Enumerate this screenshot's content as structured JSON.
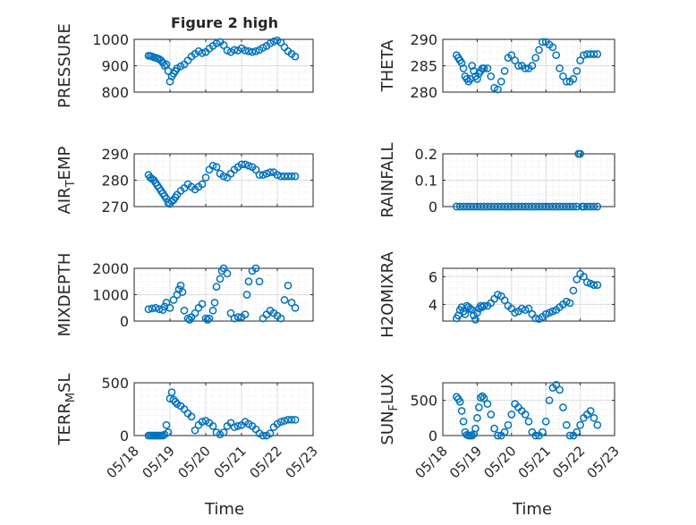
{
  "figure_title": "Figure 2 high",
  "x_axis_label": "Time",
  "colors": {
    "marker": "#0072BD",
    "axis": "#262626",
    "grid": "#dcdcdc",
    "minor_grid": "#e6e6e6"
  },
  "chart_data": [
    {
      "type": "scatter",
      "ylabel": "PRESSURE",
      "yticks": [
        "800",
        "900",
        "1000"
      ],
      "ylim": [
        800,
        1000
      ],
      "xlim": [
        "05/18",
        "05/23"
      ],
      "xticks": [
        "05/18",
        "05/19",
        "05/20",
        "05/21",
        "05/22",
        "05/23"
      ],
      "grid": "on",
      "x": [
        0.4,
        0.45,
        0.5,
        0.55,
        0.6,
        0.65,
        0.7,
        0.75,
        0.8,
        0.85,
        0.9,
        0.95,
        1.0,
        1.05,
        1.1,
        1.15,
        1.2,
        1.3,
        1.4,
        1.5,
        1.6,
        1.7,
        1.8,
        1.9,
        2.0,
        2.1,
        2.2,
        2.3,
        2.4,
        2.5,
        2.6,
        2.7,
        2.8,
        2.9,
        3.0,
        3.1,
        3.2,
        3.3,
        3.4,
        3.5,
        3.6,
        3.7,
        3.8,
        3.9,
        4.0,
        4.1,
        4.2,
        4.3,
        4.4,
        4.5
      ],
      "y": [
        938,
        937,
        935,
        932,
        930,
        928,
        925,
        920,
        912,
        900,
        905,
        880,
        840,
        860,
        870,
        880,
        890,
        898,
        905,
        920,
        935,
        945,
        955,
        948,
        952,
        965,
        975,
        985,
        990,
        978,
        958,
        952,
        960,
        958,
        966,
        958,
        955,
        952,
        955,
        960,
        968,
        975,
        985,
        992,
        996,
        988,
        970,
        955,
        945,
        935
      ]
    },
    {
      "type": "scatter",
      "ylabel": "THETA",
      "yticks": [
        "280",
        "285",
        "290"
      ],
      "ylim": [
        280,
        290
      ],
      "xlim": [
        "05/18",
        "05/23"
      ],
      "xticks": [
        "05/18",
        "05/19",
        "05/20",
        "05/21",
        "05/22",
        "05/23"
      ],
      "grid": "on",
      "x": [
        0.4,
        0.45,
        0.5,
        0.55,
        0.6,
        0.65,
        0.7,
        0.75,
        0.8,
        0.85,
        0.9,
        0.95,
        1.0,
        1.05,
        1.1,
        1.15,
        1.2,
        1.3,
        1.4,
        1.5,
        1.6,
        1.7,
        1.8,
        1.9,
        2.0,
        2.1,
        2.2,
        2.3,
        2.4,
        2.5,
        2.6,
        2.7,
        2.8,
        2.9,
        3.0,
        3.1,
        3.2,
        3.3,
        3.4,
        3.5,
        3.6,
        3.7,
        3.8,
        3.9,
        4.0,
        4.1,
        4.2,
        4.3,
        4.4,
        4.5
      ],
      "y": [
        287,
        286.5,
        286,
        285.5,
        284.5,
        283,
        282.5,
        282,
        282.5,
        285,
        284,
        283,
        282.5,
        283.5,
        284,
        284.5,
        284.5,
        284.5,
        283,
        280.8,
        280.5,
        282,
        284,
        286.5,
        287,
        286,
        285,
        285,
        284.5,
        284.5,
        285,
        286.5,
        288,
        289.5,
        289.5,
        289,
        288.5,
        287,
        284.5,
        283,
        282,
        282,
        282.5,
        284,
        286,
        287,
        287.2,
        287.2,
        287.2,
        287.2
      ]
    },
    {
      "type": "scatter",
      "ylabel": "AIR_TEMP",
      "yticks": [
        "270",
        "280",
        "290"
      ],
      "ylim": [
        270,
        290
      ],
      "xlim": [
        "05/18",
        "05/23"
      ],
      "xticks": [
        "05/18",
        "05/19",
        "05/20",
        "05/21",
        "05/22",
        "05/23"
      ],
      "grid": "on",
      "x": [
        0.4,
        0.45,
        0.5,
        0.55,
        0.6,
        0.65,
        0.7,
        0.75,
        0.8,
        0.85,
        0.9,
        0.95,
        1.0,
        1.05,
        1.1,
        1.15,
        1.2,
        1.3,
        1.4,
        1.5,
        1.6,
        1.7,
        1.8,
        1.9,
        2.0,
        2.1,
        2.2,
        2.3,
        2.4,
        2.5,
        2.6,
        2.7,
        2.8,
        2.9,
        3.0,
        3.1,
        3.2,
        3.3,
        3.4,
        3.5,
        3.6,
        3.7,
        3.8,
        3.9,
        4.0,
        4.1,
        4.2,
        4.3,
        4.4,
        4.5
      ],
      "y": [
        282,
        281,
        280.5,
        280,
        279,
        278,
        277,
        276,
        275,
        274,
        273,
        271.5,
        271,
        272,
        272.5,
        273.5,
        274.5,
        276,
        277,
        278.5,
        277.5,
        276.5,
        277.5,
        278.5,
        281,
        284,
        285.5,
        285,
        282.5,
        281.5,
        281,
        282.5,
        284,
        285,
        286,
        286,
        285.5,
        285,
        284,
        282,
        282,
        282.5,
        283,
        283,
        282,
        281.5,
        281.5,
        281.5,
        281.5,
        281.5
      ]
    },
    {
      "type": "scatter",
      "ylabel": "RAINFALL",
      "yticks": [
        "0",
        "0.1",
        "0.2"
      ],
      "ylim": [
        0,
        0.2
      ],
      "xlim": [
        "05/18",
        "05/23"
      ],
      "xticks": [
        "05/18",
        "05/19",
        "05/20",
        "05/21",
        "05/22",
        "05/23"
      ],
      "grid": "on",
      "x": [
        0.4,
        0.5,
        0.6,
        0.7,
        0.8,
        0.9,
        1.0,
        1.1,
        1.2,
        1.3,
        1.4,
        1.5,
        1.6,
        1.7,
        1.8,
        1.9,
        2.0,
        2.1,
        2.2,
        2.3,
        2.4,
        2.5,
        2.6,
        2.7,
        2.8,
        2.9,
        3.0,
        3.1,
        3.2,
        3.3,
        3.4,
        3.5,
        3.6,
        3.7,
        3.8,
        3.9,
        3.95,
        4.0,
        4.05,
        4.1,
        4.2,
        4.3,
        4.4,
        4.5
      ],
      "y": [
        0,
        0,
        0,
        0,
        0,
        0,
        0,
        0,
        0,
        0,
        0,
        0,
        0,
        0,
        0,
        0,
        0,
        0,
        0,
        0,
        0,
        0,
        0,
        0,
        0,
        0,
        0,
        0,
        0,
        0,
        0,
        0,
        0,
        0,
        0,
        0,
        0.2,
        0.2,
        0,
        0,
        0,
        0,
        0,
        0
      ]
    },
    {
      "type": "scatter",
      "ylabel": "MIXDEPTH",
      "yticks": [
        "0",
        "1000",
        "2000"
      ],
      "ylim": [
        0,
        2000
      ],
      "xlim": [
        "05/18",
        "05/23"
      ],
      "xticks": [
        "05/18",
        "05/19",
        "05/20",
        "05/21",
        "05/22",
        "05/23"
      ],
      "grid": "on",
      "x": [
        0.4,
        0.5,
        0.6,
        0.7,
        0.8,
        0.85,
        0.9,
        1.0,
        1.1,
        1.2,
        1.25,
        1.3,
        1.35,
        1.4,
        1.5,
        1.55,
        1.6,
        1.7,
        1.8,
        1.9,
        2.0,
        2.05,
        2.1,
        2.2,
        2.25,
        2.3,
        2.4,
        2.45,
        2.5,
        2.6,
        2.7,
        2.8,
        2.9,
        3.0,
        3.1,
        3.15,
        3.2,
        3.3,
        3.4,
        3.5,
        3.6,
        3.7,
        3.8,
        3.9,
        4.0,
        4.1,
        4.2,
        4.3,
        4.4,
        4.5
      ],
      "y": [
        450,
        480,
        500,
        450,
        420,
        550,
        700,
        500,
        800,
        1000,
        1200,
        1350,
        1100,
        400,
        100,
        50,
        150,
        300,
        500,
        650,
        100,
        50,
        100,
        400,
        700,
        1300,
        1600,
        1900,
        2000,
        1800,
        300,
        100,
        150,
        150,
        250,
        1000,
        1500,
        1900,
        2000,
        1500,
        100,
        250,
        400,
        300,
        200,
        100,
        800,
        1350,
        700,
        500
      ]
    },
    {
      "type": "scatter",
      "ylabel": "H2OMIXRA",
      "yticks": [
        "4",
        "6"
      ],
      "ylim": [
        2.8,
        6.6
      ],
      "xlim": [
        "05/18",
        "05/23"
      ],
      "xticks": [
        "05/18",
        "05/19",
        "05/20",
        "05/21",
        "05/22",
        "05/23"
      ],
      "grid": "on",
      "x": [
        0.4,
        0.45,
        0.5,
        0.55,
        0.6,
        0.65,
        0.7,
        0.75,
        0.8,
        0.85,
        0.9,
        0.95,
        1.0,
        1.05,
        1.1,
        1.15,
        1.2,
        1.3,
        1.4,
        1.5,
        1.6,
        1.7,
        1.8,
        1.9,
        2.0,
        2.1,
        2.2,
        2.3,
        2.4,
        2.5,
        2.6,
        2.7,
        2.8,
        2.9,
        3.0,
        3.1,
        3.2,
        3.3,
        3.4,
        3.5,
        3.6,
        3.7,
        3.8,
        3.9,
        4.0,
        4.1,
        4.2,
        4.3,
        4.4,
        4.5
      ],
      "y": [
        3.0,
        3.2,
        3.6,
        3.8,
        3.5,
        3.3,
        3.9,
        3.8,
        3.7,
        3.6,
        3.2,
        2.9,
        3.4,
        3.7,
        3.9,
        3.8,
        3.9,
        3.9,
        4.1,
        4.4,
        4.7,
        4.6,
        4.3,
        3.9,
        3.7,
        3.4,
        3.5,
        3.7,
        3.6,
        3.7,
        3.3,
        3.0,
        2.95,
        3.1,
        3.3,
        3.4,
        3.5,
        3.6,
        3.8,
        4.0,
        4.2,
        4.1,
        5.0,
        5.8,
        6.2,
        6.0,
        5.6,
        5.5,
        5.4,
        5.4
      ]
    },
    {
      "type": "scatter",
      "ylabel": "TERR_MSL",
      "yticks": [
        "0",
        "500"
      ],
      "ylim": [
        0,
        500
      ],
      "xlim": [
        "05/18",
        "05/23"
      ],
      "xticks": [
        "05/18",
        "05/19",
        "05/20",
        "05/21",
        "05/22",
        "05/23"
      ],
      "grid": "on",
      "x": [
        0.4,
        0.45,
        0.5,
        0.55,
        0.6,
        0.65,
        0.7,
        0.75,
        0.8,
        0.85,
        0.9,
        0.95,
        1.0,
        1.05,
        1.1,
        1.15,
        1.2,
        1.3,
        1.4,
        1.5,
        1.6,
        1.7,
        1.8,
        1.9,
        2.0,
        2.1,
        2.2,
        2.3,
        2.4,
        2.5,
        2.6,
        2.7,
        2.8,
        2.9,
        3.0,
        3.1,
        3.2,
        3.3,
        3.4,
        3.5,
        3.6,
        3.7,
        3.8,
        3.9,
        4.0,
        4.1,
        4.2,
        4.3,
        4.4,
        4.5
      ],
      "y": [
        0,
        0,
        0,
        0,
        0,
        0,
        0,
        0,
        0,
        10,
        100,
        30,
        350,
        410,
        340,
        320,
        300,
        280,
        250,
        210,
        180,
        50,
        100,
        130,
        140,
        120,
        90,
        30,
        10,
        30,
        90,
        120,
        80,
        90,
        100,
        130,
        110,
        90,
        60,
        20,
        0,
        0,
        20,
        80,
        110,
        130,
        140,
        150,
        150,
        150
      ]
    },
    {
      "type": "scatter",
      "ylabel": "SUN_FLUX",
      "yticks": [
        "0",
        "500"
      ],
      "ylim": [
        0,
        750
      ],
      "xlim": [
        "05/18",
        "05/23"
      ],
      "xticks": [
        "05/18",
        "05/19",
        "05/20",
        "05/21",
        "05/22",
        "05/23"
      ],
      "grid": "on",
      "x": [
        0.4,
        0.45,
        0.5,
        0.55,
        0.6,
        0.65,
        0.7,
        0.75,
        0.8,
        0.85,
        0.9,
        0.95,
        1.0,
        1.05,
        1.1,
        1.15,
        1.2,
        1.3,
        1.4,
        1.5,
        1.6,
        1.7,
        1.8,
        1.9,
        2.0,
        2.1,
        2.2,
        2.3,
        2.4,
        2.5,
        2.6,
        2.7,
        2.8,
        2.9,
        3.0,
        3.1,
        3.2,
        3.3,
        3.4,
        3.5,
        3.6,
        3.7,
        3.8,
        3.9,
        4.0,
        4.1,
        4.2,
        4.3,
        4.4,
        4.5
      ],
      "y": [
        550,
        520,
        480,
        350,
        200,
        50,
        10,
        0,
        0,
        0,
        20,
        100,
        250,
        400,
        540,
        560,
        530,
        450,
        300,
        100,
        0,
        0,
        50,
        150,
        300,
        450,
        400,
        350,
        300,
        200,
        50,
        0,
        0,
        50,
        200,
        500,
        680,
        720,
        650,
        400,
        150,
        0,
        0,
        50,
        150,
        250,
        300,
        350,
        250,
        150
      ]
    }
  ]
}
